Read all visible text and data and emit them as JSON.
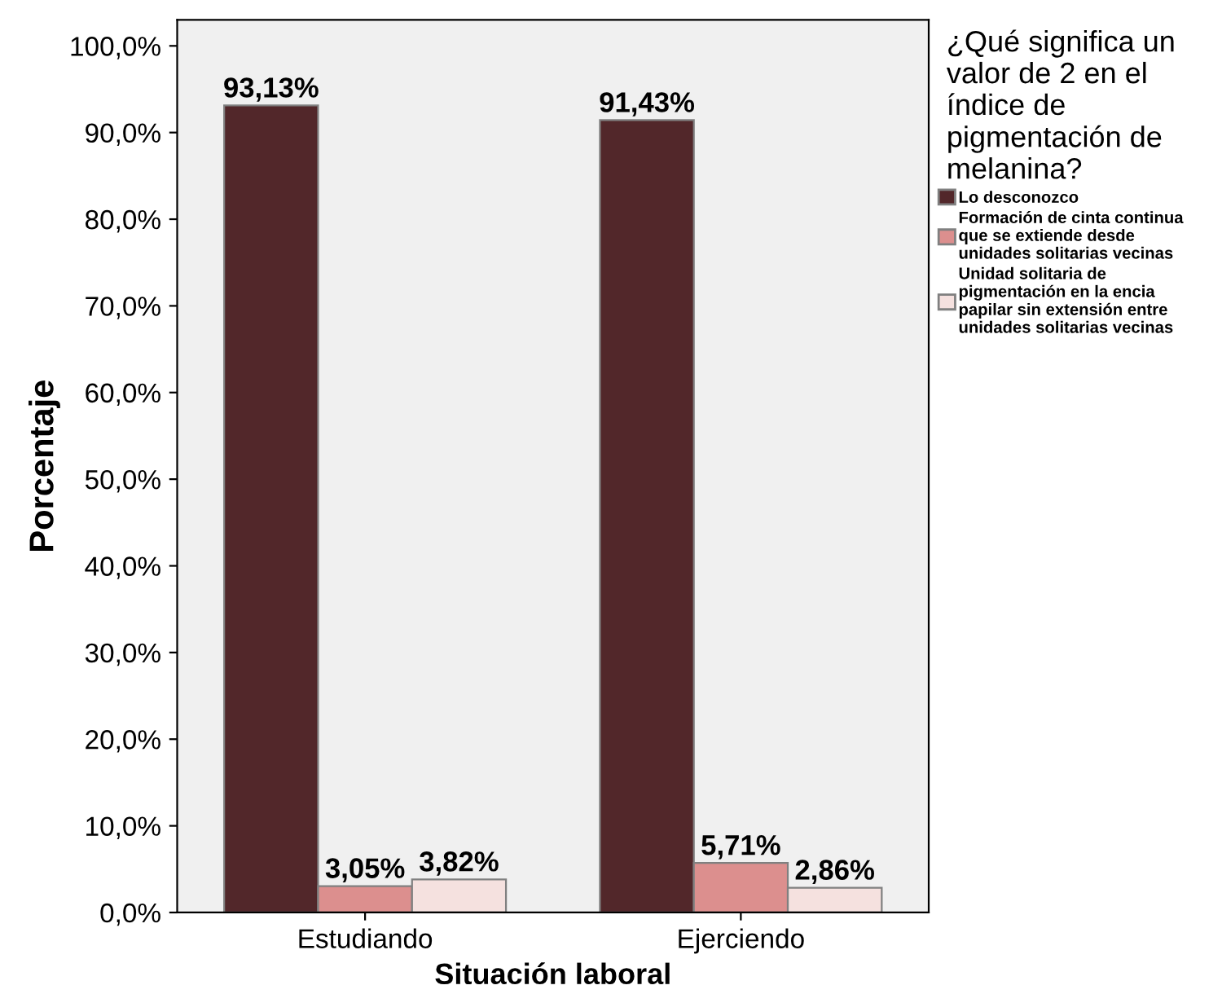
{
  "chart_data": {
    "type": "bar",
    "xlabel": "Situación laboral",
    "ylabel": "Porcentaje",
    "legend_title": "¿Qué significa un valor de 2 en el índice de pigmentación de melanina?",
    "categories": [
      "Estudiando",
      "Ejerciendo"
    ],
    "series": [
      {
        "name": "Lo desconozco",
        "color": "#52272a",
        "values": [
          93.13,
          91.43
        ],
        "value_labels": [
          "93,13%",
          "91,43%"
        ]
      },
      {
        "name": "Formación de cinta continua que se extiende desde unidades solitarias vecinas",
        "color": "#dc8f8e",
        "values": [
          3.05,
          5.71
        ],
        "value_labels": [
          "3,05%",
          "5,71%"
        ]
      },
      {
        "name": "Unidad solitaria de pigmentación en la encia papilar sin extensión entre unidades solitarias vecinas",
        "color": "#f5e1df",
        "values": [
          3.82,
          2.86
        ],
        "value_labels": [
          "3,82%",
          "2,86%"
        ]
      }
    ],
    "ylim": [
      0,
      103
    ],
    "yticks": [
      {
        "value": 0,
        "label": "0,0%"
      },
      {
        "value": 10,
        "label": "10,0%"
      },
      {
        "value": 20,
        "label": "20,0%"
      },
      {
        "value": 30,
        "label": "30,0%"
      },
      {
        "value": 40,
        "label": "40,0%"
      },
      {
        "value": 50,
        "label": "50,0%"
      },
      {
        "value": 60,
        "label": "60,0%"
      },
      {
        "value": 70,
        "label": "70,0%"
      },
      {
        "value": 80,
        "label": "80,0%"
      },
      {
        "value": 90,
        "label": "90,0%"
      },
      {
        "value": 100,
        "label": "100,0%"
      }
    ],
    "grid": false,
    "legend": "right"
  }
}
